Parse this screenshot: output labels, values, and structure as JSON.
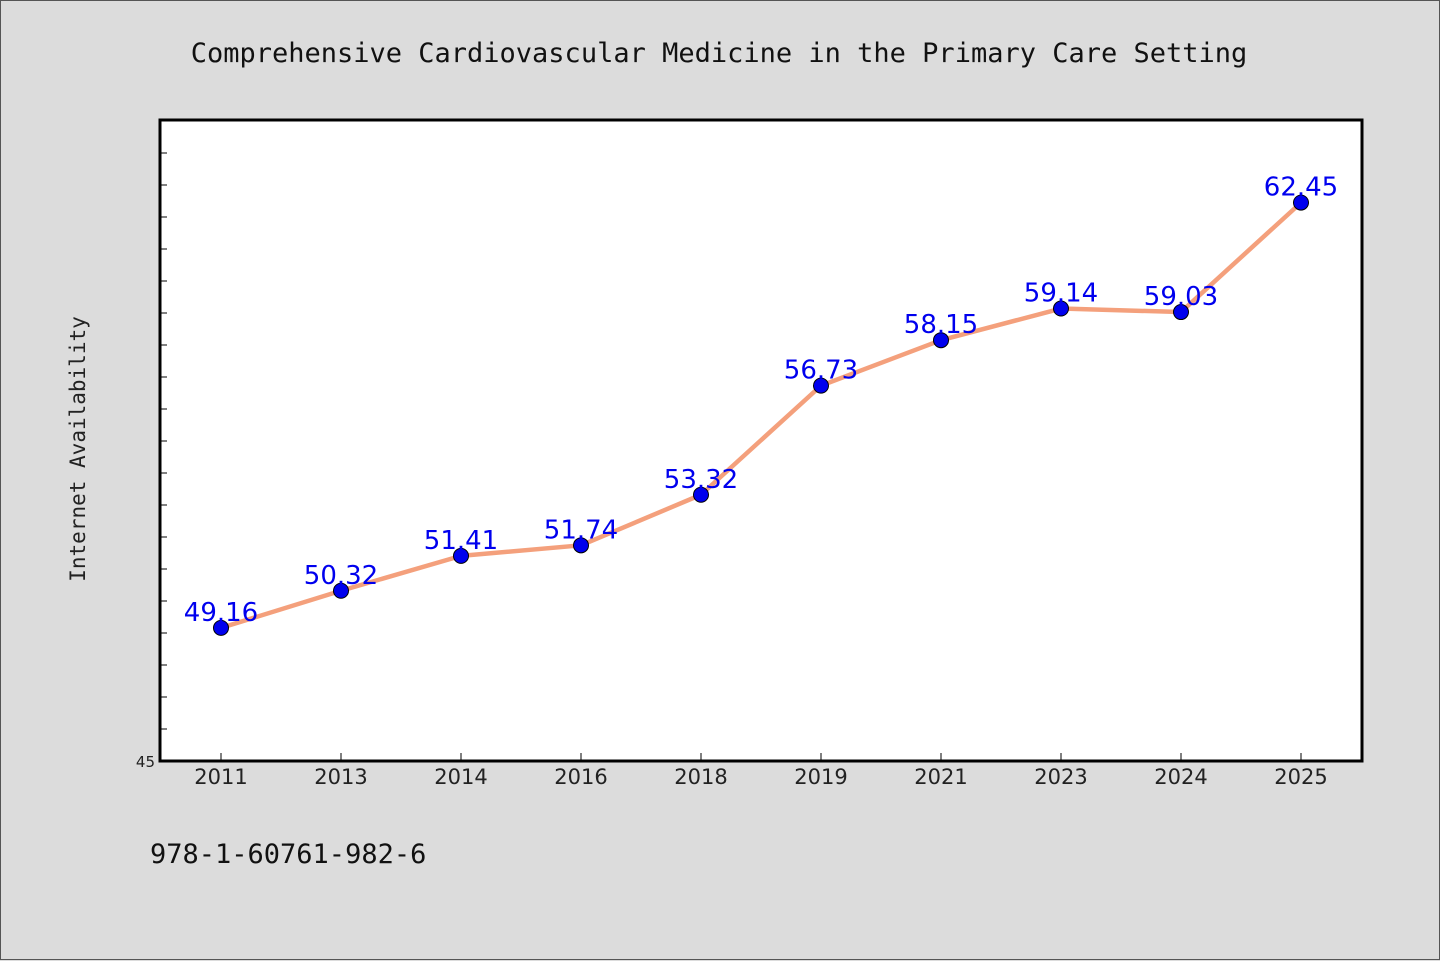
{
  "chart_data": {
    "type": "line",
    "title": "Comprehensive Cardiovascular Medicine in the Primary Care Setting",
    "xlabel": "",
    "ylabel": "Internet Availability",
    "categories": [
      "2011",
      "2013",
      "2014",
      "2016",
      "2018",
      "2019",
      "2021",
      "2023",
      "2024",
      "2025"
    ],
    "series": [
      {
        "values": [
          49.16,
          50.32,
          51.41,
          51.74,
          53.32,
          56.73,
          58.15,
          59.14,
          59.03,
          62.45
        ],
        "data_labels": [
          "49.16",
          "50.32",
          "51.41",
          "51.74",
          "53.32",
          "56.73",
          "58.15",
          "59.14",
          "59.03",
          "62.45"
        ]
      }
    ],
    "ylim": [
      45,
      65
    ],
    "y_tick_labels": [
      "45"
    ],
    "grid": false,
    "legend": "none",
    "colors": {
      "line": "#f4a07c",
      "marker": "#0000ee",
      "data_label": "#0000ee"
    }
  },
  "footer": {
    "isbn": "978-1-60761-982-6"
  }
}
